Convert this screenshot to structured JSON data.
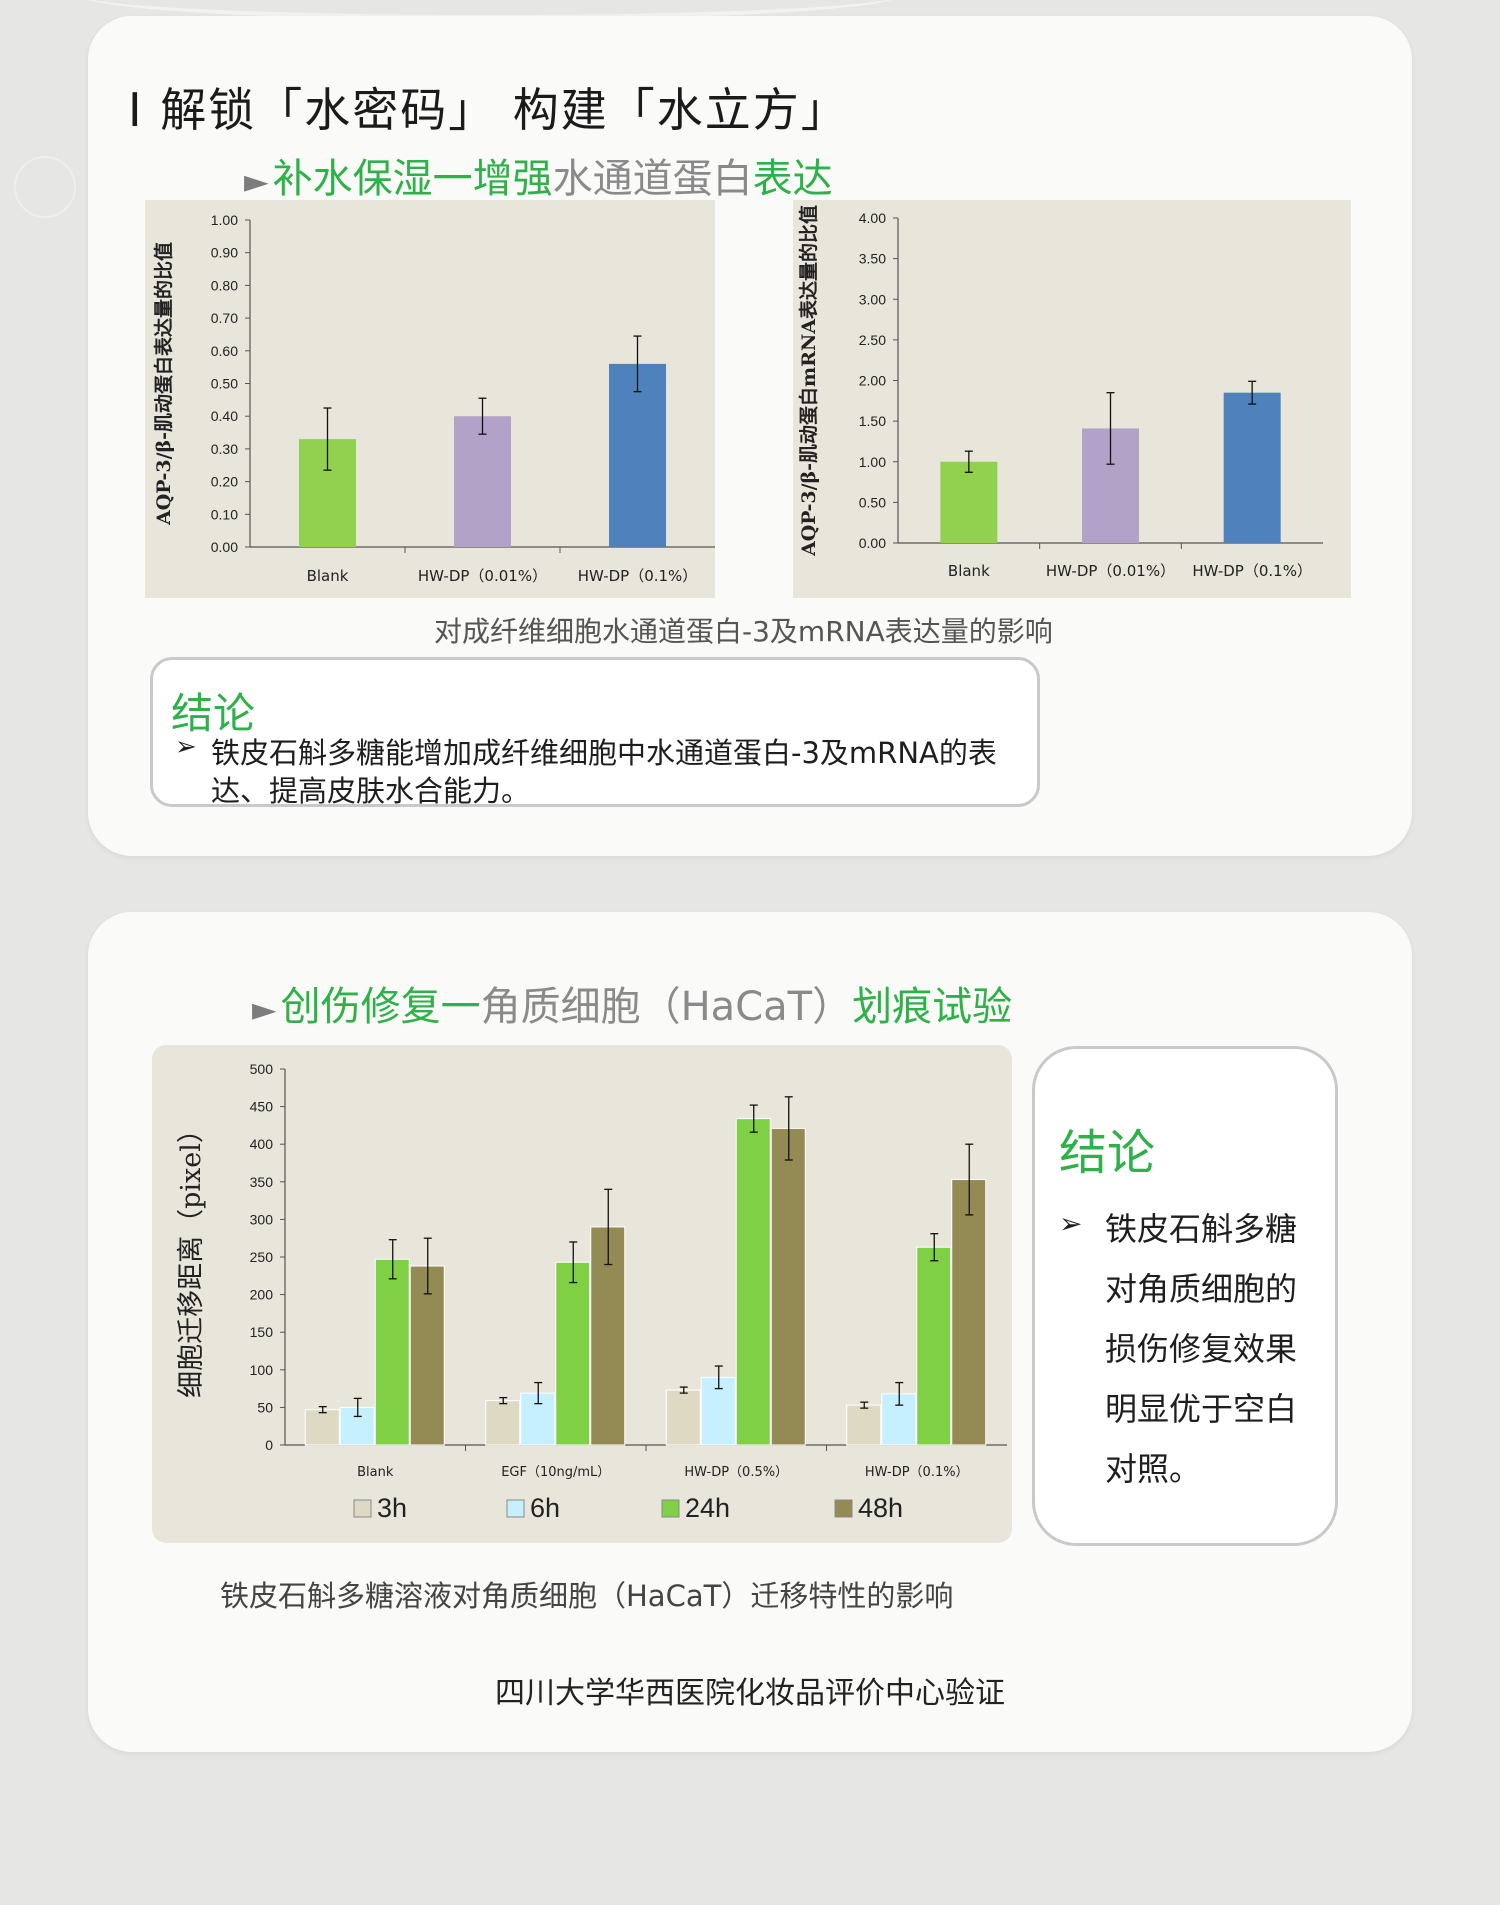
{
  "section": {
    "title": "Ⅰ 解锁「水密码」 构建「水立方」"
  },
  "sub1": {
    "arrow": "►",
    "green1": "补水保湿一增强",
    "gray": "水通道蛋白",
    "green2": "表达"
  },
  "chart_data": [
    {
      "type": "bar",
      "ylabel": "AQP-3/β-肌动蛋白表达量的比值",
      "categories": [
        "Blank",
        "HW-DP（0.01%）",
        "HW-DP（0.1%）"
      ],
      "values": [
        0.33,
        0.4,
        0.56
      ],
      "errors": [
        0.095,
        0.055,
        0.085
      ],
      "ylim": [
        0,
        1.0
      ],
      "yticks": [
        "0.00",
        "0.10",
        "0.20",
        "0.30",
        "0.40",
        "0.50",
        "0.60",
        "0.70",
        "0.80",
        "0.90",
        "1.00"
      ],
      "bar_colors": [
        "#92d050",
        "#b3a2c7",
        "#4f81bd"
      ],
      "grid": false
    },
    {
      "type": "bar",
      "ylabel": "AQP-3/β-肌动蛋白mRNA表达量的比值",
      "categories": [
        "Blank",
        "HW-DP（0.01%）",
        "HW-DP（0.1%）"
      ],
      "values": [
        1.0,
        1.41,
        1.85
      ],
      "errors": [
        0.13,
        0.44,
        0.14
      ],
      "ylim": [
        0,
        4.0
      ],
      "yticks": [
        "0.00",
        "0.50",
        "1.00",
        "1.50",
        "2.00",
        "2.50",
        "3.00",
        "3.50",
        "4.00"
      ],
      "bar_colors": [
        "#92d050",
        "#b3a2c7",
        "#4f81bd"
      ],
      "grid": false
    },
    {
      "type": "bar",
      "ylabel": "细胞迁移距离（pixel）",
      "categories": [
        "Blank",
        "EGF（10ng/mL）",
        "HW-DP（0.5%）",
        "HW-DP（0.1%）"
      ],
      "series": [
        {
          "name": "3h",
          "values": [
            47,
            59,
            73,
            53
          ],
          "errors": [
            4,
            4,
            4,
            4
          ],
          "color": "#ddd9c3"
        },
        {
          "name": "6h",
          "values": [
            50,
            69,
            90,
            68
          ],
          "errors": [
            12,
            14,
            15,
            15
          ],
          "color": "#c6efff"
        },
        {
          "name": "24h",
          "values": [
            247,
            243,
            434,
            263
          ],
          "errors": [
            26,
            27,
            18,
            18
          ],
          "color": "#7fd045"
        },
        {
          "name": "48h",
          "values": [
            238,
            290,
            421,
            353
          ],
          "errors": [
            37,
            50,
            42,
            47
          ],
          "color": "#948a54"
        }
      ],
      "ylim": [
        0,
        500
      ],
      "yticks": [
        "0",
        "50",
        "100",
        "150",
        "200",
        "250",
        "300",
        "350",
        "400",
        "450",
        "500"
      ],
      "legend": "bottom",
      "grid": false
    }
  ],
  "caption1": "对成纤维细胞水通道蛋白-3及mRNA表达量的影响",
  "conclusion1": {
    "title": "结论",
    "bullet": "➢",
    "line1": "铁皮石斛多糖能增加成纤维细胞中水通道蛋白-3及mRNA的表",
    "line2": "达、提高皮肤水合能力。"
  },
  "sub2": {
    "arrow": "►",
    "green1": "创伤修复一",
    "gray": "角质细胞（HaCaT）",
    "green2": "划痕试验"
  },
  "caption2": "铁皮石斛多糖溶液对角质细胞（HaCaT）迁移特性的影响",
  "conclusion2": {
    "title": "结论",
    "bullet": "➢",
    "lines": [
      "铁皮石斛多糖",
      "对角质细胞的",
      "损伤修复效果",
      "明显优于空白",
      "对照。"
    ]
  },
  "footer": "四川大学华西医院化妆品评价中心验证"
}
